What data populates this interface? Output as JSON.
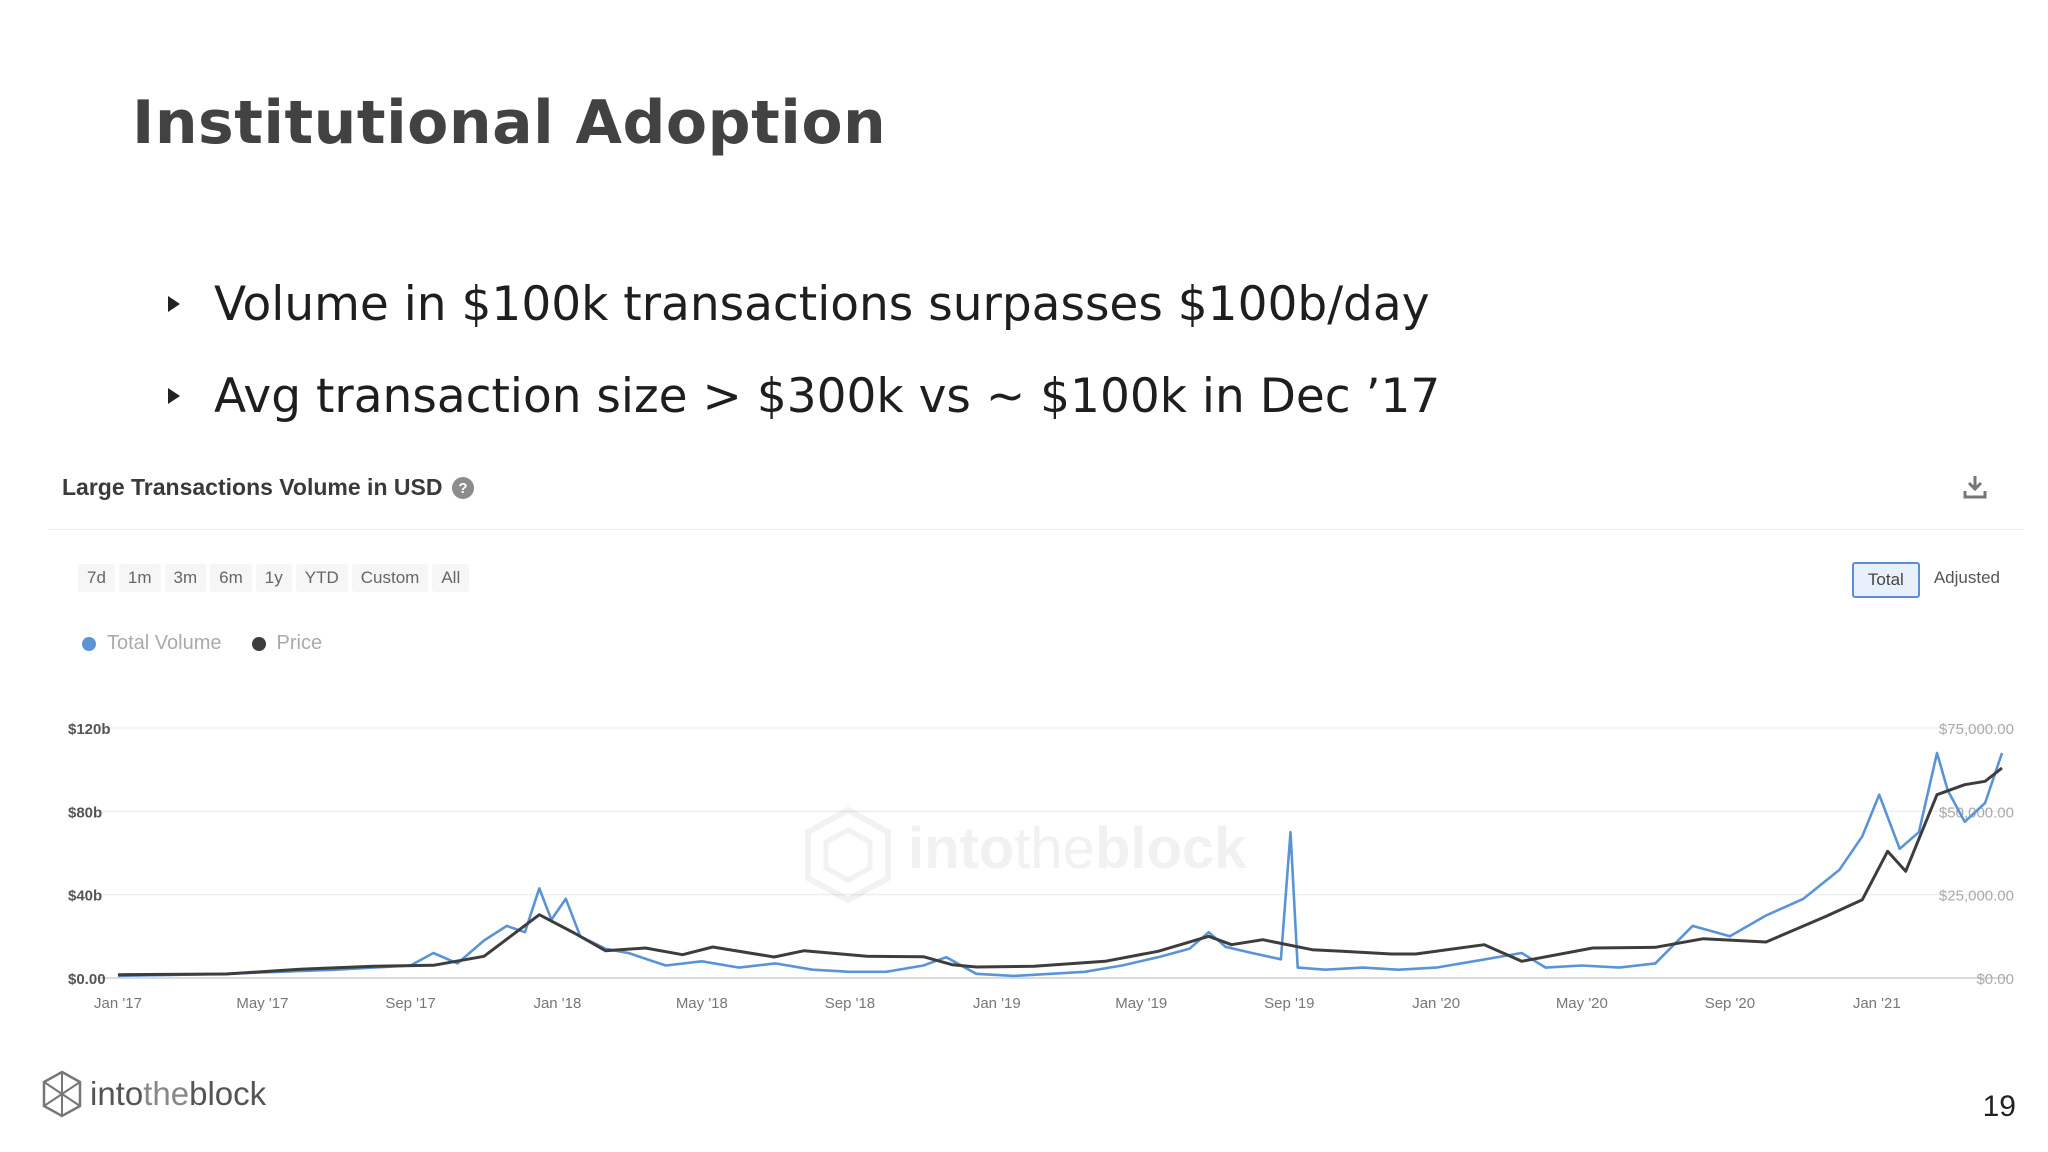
{
  "slide": {
    "title": "Institutional Adoption",
    "bullets": [
      "Volume in $100k transactions surpasses $100b/day",
      "Avg transaction size > $300k vs ~ $100k in Dec ’17"
    ],
    "page_number": "19",
    "logo_text_a": "into",
    "logo_text_b": "the",
    "logo_text_c": "block"
  },
  "card": {
    "title": "Large Transactions Volume in USD",
    "help_glyph": "?",
    "ranges": [
      "7d",
      "1m",
      "3m",
      "6m",
      "1y",
      "YTD",
      "Custom",
      "All"
    ],
    "toggles": [
      "Total",
      "Adjusted"
    ],
    "active_toggle": "Total",
    "watermark_a": "into",
    "watermark_b": "the",
    "watermark_c": "block"
  },
  "colors": {
    "volume": "#5b94d6",
    "price": "#3d3d3d"
  },
  "chart_data": {
    "type": "line",
    "x_ticks": [
      "Jan '17",
      "May '17",
      "Sep '17",
      "Jan '18",
      "May '18",
      "Sep '18",
      "Jan '19",
      "May '19",
      "Sep '19",
      "Jan '20",
      "May '20",
      "Sep '20",
      "Jan '21"
    ],
    "y_left_ticks": [
      "$0.00",
      "$40b",
      "$80b",
      "$120b"
    ],
    "y_right_ticks": [
      "$0.00",
      "$25,000.00",
      "$50,000.00",
      "$75,000.00"
    ],
    "ylim_left": [
      0,
      120
    ],
    "ylim_right": [
      0,
      75000
    ],
    "grid": true,
    "legend_position": "top-left",
    "series": [
      {
        "name": "Total Volume",
        "axis": "left",
        "color": "#5b94d6",
        "points": [
          [
            "2017-01-01",
            1
          ],
          [
            "2017-02-15",
            1.5
          ],
          [
            "2017-04-01",
            2
          ],
          [
            "2017-05-15",
            3
          ],
          [
            "2017-07-01",
            4
          ],
          [
            "2017-08-01",
            5
          ],
          [
            "2017-09-01",
            6
          ],
          [
            "2017-09-20",
            12
          ],
          [
            "2017-10-10",
            7
          ],
          [
            "2017-11-01",
            18
          ],
          [
            "2017-11-20",
            25
          ],
          [
            "2017-12-05",
            22
          ],
          [
            "2017-12-17",
            43
          ],
          [
            "2017-12-27",
            28
          ],
          [
            "2018-01-08",
            38
          ],
          [
            "2018-01-20",
            20
          ],
          [
            "2018-02-10",
            14
          ],
          [
            "2018-03-01",
            12
          ],
          [
            "2018-04-01",
            6
          ],
          [
            "2018-05-01",
            8
          ],
          [
            "2018-06-01",
            5
          ],
          [
            "2018-07-01",
            7
          ],
          [
            "2018-08-01",
            4
          ],
          [
            "2018-09-01",
            3
          ],
          [
            "2018-10-01",
            3
          ],
          [
            "2018-11-01",
            6
          ],
          [
            "2018-11-20",
            10
          ],
          [
            "2018-12-15",
            2
          ],
          [
            "2019-01-15",
            1
          ],
          [
            "2019-02-15",
            2
          ],
          [
            "2019-03-15",
            3
          ],
          [
            "2019-04-15",
            6
          ],
          [
            "2019-05-15",
            10
          ],
          [
            "2019-06-10",
            14
          ],
          [
            "2019-06-26",
            22
          ],
          [
            "2019-07-10",
            15
          ],
          [
            "2019-08-01",
            12
          ],
          [
            "2019-08-25",
            9
          ],
          [
            "2019-09-02",
            70
          ],
          [
            "2019-09-08",
            5
          ],
          [
            "2019-10-01",
            4
          ],
          [
            "2019-11-01",
            5
          ],
          [
            "2019-12-01",
            4
          ],
          [
            "2020-01-01",
            5
          ],
          [
            "2020-02-01",
            8
          ],
          [
            "2020-03-12",
            12
          ],
          [
            "2020-04-01",
            5
          ],
          [
            "2020-05-01",
            6
          ],
          [
            "2020-06-01",
            5
          ],
          [
            "2020-07-01",
            7
          ],
          [
            "2020-08-01",
            25
          ],
          [
            "2020-09-01",
            20
          ],
          [
            "2020-10-01",
            30
          ],
          [
            "2020-11-01",
            38
          ],
          [
            "2020-12-01",
            52
          ],
          [
            "2020-12-20",
            68
          ],
          [
            "2021-01-03",
            88
          ],
          [
            "2021-01-20",
            62
          ],
          [
            "2021-02-05",
            70
          ],
          [
            "2021-02-20",
            108
          ],
          [
            "2021-03-01",
            90
          ],
          [
            "2021-03-15",
            75
          ],
          [
            "2021-04-01",
            84
          ],
          [
            "2021-04-15",
            108
          ]
        ]
      },
      {
        "name": "Price",
        "axis": "right",
        "color": "#3d3d3d",
        "points": [
          [
            "2017-01-01",
            1000
          ],
          [
            "2017-04-01",
            1200
          ],
          [
            "2017-06-01",
            2600
          ],
          [
            "2017-08-01",
            3500
          ],
          [
            "2017-09-20",
            3800
          ],
          [
            "2017-11-01",
            6500
          ],
          [
            "2017-12-17",
            19000
          ],
          [
            "2018-01-15",
            13500
          ],
          [
            "2018-02-10",
            8200
          ],
          [
            "2018-03-15",
            9000
          ],
          [
            "2018-04-15",
            7000
          ],
          [
            "2018-05-10",
            9300
          ],
          [
            "2018-06-30",
            6300
          ],
          [
            "2018-07-25",
            8200
          ],
          [
            "2018-09-15",
            6500
          ],
          [
            "2018-11-01",
            6400
          ],
          [
            "2018-11-25",
            4000
          ],
          [
            "2018-12-15",
            3300
          ],
          [
            "2019-02-01",
            3500
          ],
          [
            "2019-04-01",
            5000
          ],
          [
            "2019-05-15",
            8000
          ],
          [
            "2019-06-26",
            12500
          ],
          [
            "2019-07-15",
            10000
          ],
          [
            "2019-08-10",
            11500
          ],
          [
            "2019-09-20",
            8500
          ],
          [
            "2019-10-15",
            8000
          ],
          [
            "2019-11-25",
            7200
          ],
          [
            "2019-12-15",
            7200
          ],
          [
            "2020-02-10",
            10000
          ],
          [
            "2020-03-12",
            5000
          ],
          [
            "2020-05-10",
            9000
          ],
          [
            "2020-07-01",
            9200
          ],
          [
            "2020-08-10",
            11800
          ],
          [
            "2020-10-01",
            10800
          ],
          [
            "2020-11-20",
            18500
          ],
          [
            "2020-12-20",
            23500
          ],
          [
            "2021-01-10",
            38000
          ],
          [
            "2021-01-25",
            32000
          ],
          [
            "2021-02-20",
            55000
          ],
          [
            "2021-03-15",
            58000
          ],
          [
            "2021-04-01",
            59000
          ],
          [
            "2021-04-15",
            63000
          ]
        ]
      }
    ]
  }
}
